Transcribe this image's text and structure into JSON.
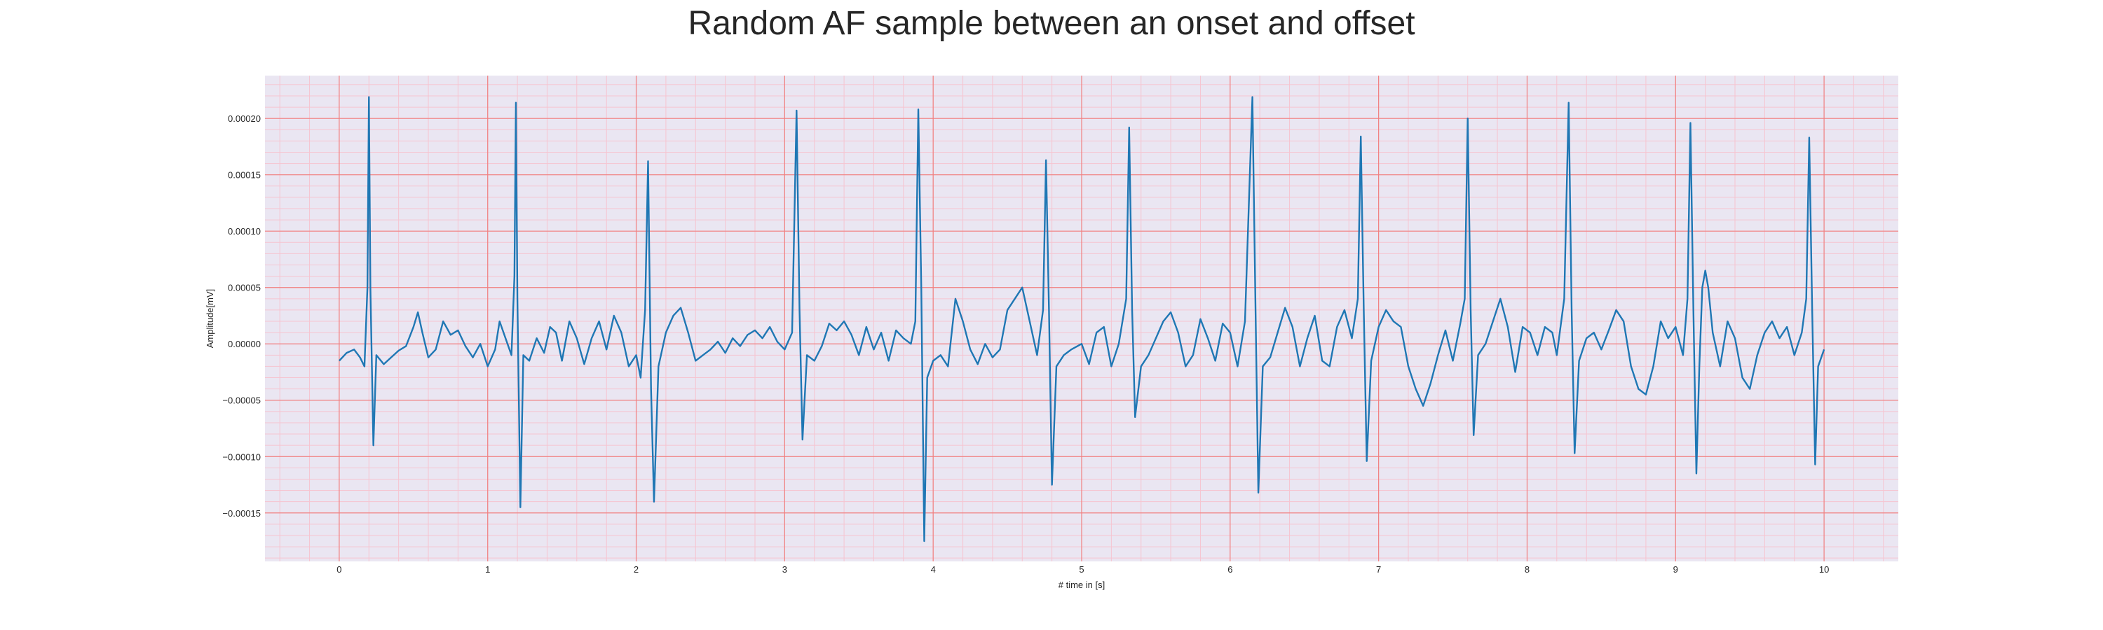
{
  "chart_data": {
    "type": "line",
    "title": "Random AF sample between an onset and offset",
    "xlabel": "# time in [s]",
    "ylabel": "Amplitude[mV]",
    "xlim": [
      -0.5,
      10.5
    ],
    "ylim": [
      -0.000193,
      0.000238
    ],
    "x_ticks": [
      0,
      1,
      2,
      3,
      4,
      5,
      6,
      7,
      8,
      9,
      10
    ],
    "x_tick_labels": [
      "0",
      "1",
      "2",
      "3",
      "4",
      "5",
      "6",
      "7",
      "8",
      "9",
      "10"
    ],
    "y_ticks": [
      -0.00015,
      -0.0001,
      -5e-05,
      0,
      5e-05,
      0.0001,
      0.00015,
      0.0002
    ],
    "y_tick_labels": [
      "−0.00015",
      "−0.00010",
      "−0.00005",
      "0.00000",
      "0.00005",
      "0.00010",
      "0.00015",
      "0.00020"
    ],
    "grid": true,
    "minor_grid": true,
    "colors": {
      "background": "#eae6f2",
      "major_grid": "#f08080",
      "minor_grid": "#f6c4d0",
      "line": "#1f77b4"
    },
    "series": [
      {
        "points": [
          [
            0.0,
            -1.5e-05
          ],
          [
            0.05,
            -8e-06
          ],
          [
            0.1,
            -5e-06
          ],
          [
            0.14,
            -1.2e-05
          ],
          [
            0.17,
            -2e-05
          ],
          [
            0.19,
            5e-05
          ],
          [
            0.2,
            0.000219
          ],
          [
            0.21,
            5e-05
          ],
          [
            0.23,
            -9e-05
          ],
          [
            0.25,
            -1e-05
          ],
          [
            0.3,
            -1.8e-05
          ],
          [
            0.35,
            -1.2e-05
          ],
          [
            0.4,
            -6e-06
          ],
          [
            0.45,
            -2e-06
          ],
          [
            0.5,
            1.5e-05
          ],
          [
            0.53,
            2.8e-05
          ],
          [
            0.56,
            1e-05
          ],
          [
            0.6,
            -1.2e-05
          ],
          [
            0.65,
            -5e-06
          ],
          [
            0.7,
            2e-05
          ],
          [
            0.75,
            8e-06
          ],
          [
            0.8,
            1.2e-05
          ],
          [
            0.85,
            -2e-06
          ],
          [
            0.9,
            -1.2e-05
          ],
          [
            0.95,
            0.0
          ],
          [
            1.0,
            -2e-05
          ],
          [
            1.05,
            -5e-06
          ],
          [
            1.08,
            2e-05
          ],
          [
            1.12,
            5e-06
          ],
          [
            1.16,
            -1e-05
          ],
          [
            1.18,
            6e-05
          ],
          [
            1.19,
            0.000214
          ],
          [
            1.2,
            4e-05
          ],
          [
            1.22,
            -0.000145
          ],
          [
            1.24,
            -1e-05
          ],
          [
            1.28,
            -1.5e-05
          ],
          [
            1.33,
            5e-06
          ],
          [
            1.38,
            -8e-06
          ],
          [
            1.42,
            1.5e-05
          ],
          [
            1.46,
            1e-05
          ],
          [
            1.5,
            -1.5e-05
          ],
          [
            1.55,
            2e-05
          ],
          [
            1.6,
            5e-06
          ],
          [
            1.65,
            -1.8e-05
          ],
          [
            1.7,
            5e-06
          ],
          [
            1.75,
            2e-05
          ],
          [
            1.8,
            -5e-06
          ],
          [
            1.85,
            2.5e-05
          ],
          [
            1.9,
            1e-05
          ],
          [
            1.95,
            -2e-05
          ],
          [
            2.0,
            -1e-05
          ],
          [
            2.03,
            -3e-05
          ],
          [
            2.06,
            3e-05
          ],
          [
            2.08,
            0.000162
          ],
          [
            2.1,
            -4e-05
          ],
          [
            2.12,
            -0.00014
          ],
          [
            2.15,
            -2e-05
          ],
          [
            2.2,
            1e-05
          ],
          [
            2.25,
            2.5e-05
          ],
          [
            2.3,
            3.2e-05
          ],
          [
            2.35,
            1e-05
          ],
          [
            2.4,
            -1.5e-05
          ],
          [
            2.45,
            -1e-05
          ],
          [
            2.5,
            -5e-06
          ],
          [
            2.55,
            2e-06
          ],
          [
            2.6,
            -8e-06
          ],
          [
            2.65,
            5e-06
          ],
          [
            2.7,
            -2e-06
          ],
          [
            2.75,
            8e-06
          ],
          [
            2.8,
            1.2e-05
          ],
          [
            2.85,
            5e-06
          ],
          [
            2.9,
            1.5e-05
          ],
          [
            2.95,
            2e-06
          ],
          [
            3.0,
            -5e-06
          ],
          [
            3.05,
            1e-05
          ],
          [
            3.08,
            0.000207
          ],
          [
            3.1,
            3e-05
          ],
          [
            3.12,
            -8.5e-05
          ],
          [
            3.15,
            -1e-05
          ],
          [
            3.2,
            -1.5e-05
          ],
          [
            3.25,
            -2e-06
          ],
          [
            3.3,
            1.8e-05
          ],
          [
            3.35,
            1.2e-05
          ],
          [
            3.4,
            2e-05
          ],
          [
            3.45,
            8e-06
          ],
          [
            3.5,
            -1e-05
          ],
          [
            3.55,
            1.5e-05
          ],
          [
            3.6,
            -5e-06
          ],
          [
            3.65,
            1e-05
          ],
          [
            3.7,
            -1.5e-05
          ],
          [
            3.75,
            1.2e-05
          ],
          [
            3.8,
            5e-06
          ],
          [
            3.85,
            0.0
          ],
          [
            3.88,
            2e-05
          ],
          [
            3.9,
            0.000208
          ],
          [
            3.92,
            5e-05
          ],
          [
            3.94,
            -0.000175
          ],
          [
            3.96,
            -3e-05
          ],
          [
            4.0,
            -1.5e-05
          ],
          [
            4.05,
            -1e-05
          ],
          [
            4.1,
            -2e-05
          ],
          [
            4.15,
            4e-05
          ],
          [
            4.2,
            2e-05
          ],
          [
            4.25,
            -5e-06
          ],
          [
            4.3,
            -1.8e-05
          ],
          [
            4.35,
            0.0
          ],
          [
            4.4,
            -1.2e-05
          ],
          [
            4.45,
            -5e-06
          ],
          [
            4.5,
            3e-05
          ],
          [
            4.55,
            4e-05
          ],
          [
            4.6,
            5e-05
          ],
          [
            4.65,
            2e-05
          ],
          [
            4.7,
            -1e-05
          ],
          [
            4.74,
            3e-05
          ],
          [
            4.76,
            0.000163
          ],
          [
            4.78,
            3e-05
          ],
          [
            4.8,
            -0.000125
          ],
          [
            4.83,
            -2e-05
          ],
          [
            4.88,
            -1e-05
          ],
          [
            4.93,
            -5e-06
          ],
          [
            5.0,
            0.0
          ],
          [
            5.05,
            -1.8e-05
          ],
          [
            5.1,
            1e-05
          ],
          [
            5.15,
            1.5e-05
          ],
          [
            5.2,
            -2e-05
          ],
          [
            5.25,
            0.0
          ],
          [
            5.3,
            4e-05
          ],
          [
            5.32,
            0.000192
          ],
          [
            5.34,
            3e-05
          ],
          [
            5.36,
            -6.5e-05
          ],
          [
            5.4,
            -2e-05
          ],
          [
            5.45,
            -1e-05
          ],
          [
            5.5,
            5e-06
          ],
          [
            5.55,
            2e-05
          ],
          [
            5.6,
            2.8e-05
          ],
          [
            5.65,
            1e-05
          ],
          [
            5.7,
            -2e-05
          ],
          [
            5.75,
            -1e-05
          ],
          [
            5.8,
            2.2e-05
          ],
          [
            5.85,
            5e-06
          ],
          [
            5.9,
            -1.5e-05
          ],
          [
            5.95,
            1.8e-05
          ],
          [
            6.0,
            1e-05
          ],
          [
            6.05,
            -2e-05
          ],
          [
            6.1,
            2e-05
          ],
          [
            6.15,
            0.000219
          ],
          [
            6.17,
            4e-05
          ],
          [
            6.19,
            -0.000132
          ],
          [
            6.22,
            -2e-05
          ],
          [
            6.27,
            -1.2e-05
          ],
          [
            6.32,
            1e-05
          ],
          [
            6.37,
            3.2e-05
          ],
          [
            6.42,
            1.5e-05
          ],
          [
            6.47,
            -2e-05
          ],
          [
            6.52,
            5e-06
          ],
          [
            6.57,
            2.5e-05
          ],
          [
            6.62,
            -1.5e-05
          ],
          [
            6.67,
            -2e-05
          ],
          [
            6.72,
            1.5e-05
          ],
          [
            6.77,
            3e-05
          ],
          [
            6.82,
            5e-06
          ],
          [
            6.86,
            4e-05
          ],
          [
            6.88,
            0.000184
          ],
          [
            6.9,
            3e-05
          ],
          [
            6.92,
            -0.000104
          ],
          [
            6.95,
            -1.5e-05
          ],
          [
            7.0,
            1.5e-05
          ],
          [
            7.05,
            3e-05
          ],
          [
            7.1,
            2e-05
          ],
          [
            7.15,
            1.5e-05
          ],
          [
            7.2,
            -2e-05
          ],
          [
            7.25,
            -4e-05
          ],
          [
            7.3,
            -5.5e-05
          ],
          [
            7.35,
            -3.5e-05
          ],
          [
            7.4,
            -1e-05
          ],
          [
            7.45,
            1.2e-05
          ],
          [
            7.5,
            -1.5e-05
          ],
          [
            7.55,
            1.8e-05
          ],
          [
            7.58,
            4e-05
          ],
          [
            7.6,
            0.0002
          ],
          [
            7.62,
            3e-05
          ],
          [
            7.64,
            -8.1e-05
          ],
          [
            7.67,
            -1e-05
          ],
          [
            7.72,
            0.0
          ],
          [
            7.77,
            2e-05
          ],
          [
            7.82,
            4e-05
          ],
          [
            7.87,
            1.5e-05
          ],
          [
            7.92,
            -2.5e-05
          ],
          [
            7.97,
            1.5e-05
          ],
          [
            8.02,
            1e-05
          ],
          [
            8.07,
            -1e-05
          ],
          [
            8.12,
            1.5e-05
          ],
          [
            8.17,
            1e-05
          ],
          [
            8.2,
            -1e-05
          ],
          [
            8.25,
            4e-05
          ],
          [
            8.28,
            0.000214
          ],
          [
            8.3,
            3e-05
          ],
          [
            8.32,
            -9.7e-05
          ],
          [
            8.35,
            -1.5e-05
          ],
          [
            8.4,
            5e-06
          ],
          [
            8.45,
            1e-05
          ],
          [
            8.5,
            -5e-06
          ],
          [
            8.55,
            1.2e-05
          ],
          [
            8.6,
            3e-05
          ],
          [
            8.65,
            2e-05
          ],
          [
            8.7,
            -2e-05
          ],
          [
            8.75,
            -4e-05
          ],
          [
            8.8,
            -4.5e-05
          ],
          [
            8.85,
            -2e-05
          ],
          [
            8.9,
            2e-05
          ],
          [
            8.95,
            5e-06
          ],
          [
            9.0,
            1.5e-05
          ],
          [
            9.05,
            -1e-05
          ],
          [
            9.08,
            4e-05
          ],
          [
            9.1,
            0.000196
          ],
          [
            9.12,
            3e-05
          ],
          [
            9.14,
            -0.000115
          ],
          [
            9.16,
            -2e-05
          ],
          [
            9.18,
            5e-05
          ],
          [
            9.2,
            6.5e-05
          ],
          [
            9.22,
            5e-05
          ],
          [
            9.25,
            1e-05
          ],
          [
            9.3,
            -2e-05
          ],
          [
            9.35,
            2e-05
          ],
          [
            9.4,
            5e-06
          ],
          [
            9.45,
            -3e-05
          ],
          [
            9.5,
            -4e-05
          ],
          [
            9.55,
            -1e-05
          ],
          [
            9.6,
            1e-05
          ],
          [
            9.65,
            2e-05
          ],
          [
            9.7,
            5e-06
          ],
          [
            9.75,
            1.5e-05
          ],
          [
            9.8,
            -1e-05
          ],
          [
            9.85,
            1e-05
          ],
          [
            9.88,
            4e-05
          ],
          [
            9.9,
            0.000183
          ],
          [
            9.92,
            3e-05
          ],
          [
            9.94,
            -0.000107
          ],
          [
            9.96,
            -2e-05
          ],
          [
            10.0,
            -5e-06
          ]
        ]
      }
    ]
  }
}
